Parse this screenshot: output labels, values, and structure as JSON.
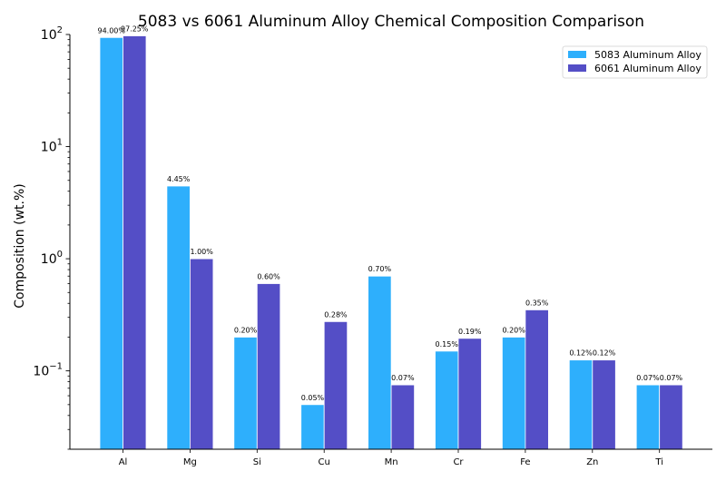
{
  "chart_data": {
    "type": "bar",
    "title": "5083 vs 6061 Aluminum Alloy Chemical Composition Comparison",
    "xlabel": "",
    "ylabel": "Composition (wt.%)",
    "yscale": "log",
    "ylim": [
      0.02,
      100
    ],
    "yticks": [
      {
        "base": "10",
        "exp": "−1",
        "value": 0.1
      },
      {
        "base": "10",
        "exp": "0",
        "value": 1
      },
      {
        "base": "10",
        "exp": "1",
        "value": 10
      },
      {
        "base": "10",
        "exp": "2",
        "value": 100
      }
    ],
    "categories": [
      "Al",
      "Mg",
      "Si",
      "Cu",
      "Mn",
      "Cr",
      "Fe",
      "Zn",
      "Ti"
    ],
    "series": [
      {
        "name": "5083 Aluminum Alloy",
        "color": "#2eaffc",
        "values": [
          94.0,
          4.45,
          0.2,
          0.05,
          0.7,
          0.15,
          0.2,
          0.125,
          0.075
        ],
        "labels": [
          "94.00%",
          "4.45%",
          "0.20%",
          "0.05%",
          "0.70%",
          "0.15%",
          "0.20%",
          "0.12%",
          "0.07%"
        ]
      },
      {
        "name": "6061 Aluminum Alloy",
        "color": "#544ec6",
        "values": [
          97.25,
          1.0,
          0.6,
          0.275,
          0.075,
          0.195,
          0.35,
          0.125,
          0.075
        ],
        "labels": [
          "97.25%",
          "1.00%",
          "0.60%",
          "0.28%",
          "0.07%",
          "0.19%",
          "0.35%",
          "0.12%",
          "0.07%"
        ]
      }
    ],
    "legend": {
      "position": "top-right"
    },
    "grid": false
  }
}
